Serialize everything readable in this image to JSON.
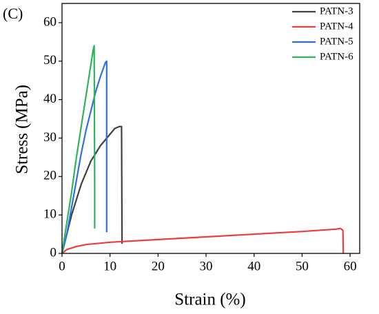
{
  "chart_data": {
    "type": "line",
    "annotation": "(C)",
    "xlabel": "Strain (%)",
    "ylabel": "Stress (MPa)",
    "xlim": [
      0,
      62
    ],
    "ylim": [
      0,
      65
    ],
    "xticks": [
      0,
      10,
      20,
      30,
      40,
      50,
      60
    ],
    "yticks": [
      0,
      10,
      20,
      30,
      40,
      50,
      60
    ],
    "legend": "upper right",
    "series": [
      {
        "name": "PATN-3",
        "color": "#404040",
        "x": [
          0,
          1,
          2,
          3,
          4,
          5,
          6,
          8,
          10,
          11,
          12,
          12.4,
          12.5
        ],
        "values": [
          0,
          5,
          10,
          14,
          18,
          21,
          24,
          28,
          31,
          32.5,
          33,
          33,
          2.5
        ]
      },
      {
        "name": "PATN-4",
        "color": "#ee3b3b",
        "x": [
          0,
          1,
          3,
          5,
          10,
          20,
          30,
          40,
          50,
          57,
          58,
          58.5,
          58.6
        ],
        "values": [
          0,
          1,
          1.8,
          2.3,
          2.9,
          3.6,
          4.3,
          5,
          5.7,
          6.3,
          6.5,
          6,
          0
        ]
      },
      {
        "name": "PATN-5",
        "color": "#2f6fe0",
        "x": [
          0,
          1,
          2,
          3,
          4,
          5,
          6,
          7,
          8,
          9,
          9.3,
          9.3
        ],
        "values": [
          0,
          5,
          12,
          19,
          26,
          32,
          37,
          42,
          46,
          49.5,
          50,
          5.5
        ]
      },
      {
        "name": "PATN-6",
        "color": "#2fb35a",
        "x": [
          0,
          1,
          2,
          3,
          4,
          5,
          6,
          6.5,
          6.7,
          6.8,
          6.8
        ],
        "values": [
          0,
          8,
          16,
          25,
          33,
          41,
          49,
          53,
          54,
          17,
          6.5
        ]
      }
    ]
  }
}
